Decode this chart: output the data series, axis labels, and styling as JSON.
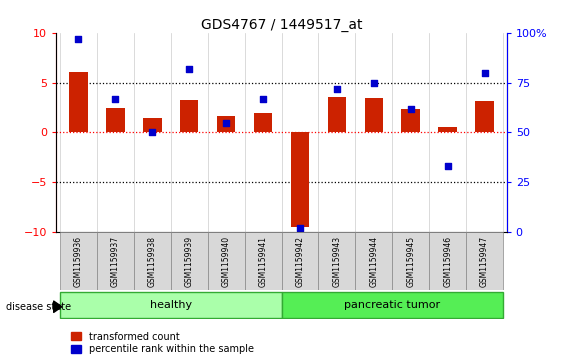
{
  "title": "GDS4767 / 1449517_at",
  "samples": [
    "GSM1159936",
    "GSM1159937",
    "GSM1159938",
    "GSM1159939",
    "GSM1159940",
    "GSM1159941",
    "GSM1159942",
    "GSM1159943",
    "GSM1159944",
    "GSM1159945",
    "GSM1159946",
    "GSM1159947"
  ],
  "bar_values": [
    6.1,
    2.5,
    1.5,
    3.3,
    1.7,
    2.0,
    -9.5,
    3.6,
    3.5,
    2.4,
    0.6,
    3.2
  ],
  "percentile_values": [
    97,
    67,
    50,
    82,
    55,
    67,
    2,
    72,
    75,
    62,
    33,
    80
  ],
  "bar_color": "#cc2200",
  "dot_color": "#0000cc",
  "ylim_left": [
    -10,
    10
  ],
  "ylim_right": [
    0,
    100
  ],
  "yticks_left": [
    -10,
    -5,
    0,
    5,
    10
  ],
  "yticks_right": [
    0,
    25,
    50,
    75,
    100
  ],
  "ytick_labels_right": [
    "0",
    "25",
    "50",
    "75",
    "100%"
  ],
  "healthy_color": "#aaffaa",
  "tumor_color": "#55ee55",
  "group_border_color": "#33aa33"
}
